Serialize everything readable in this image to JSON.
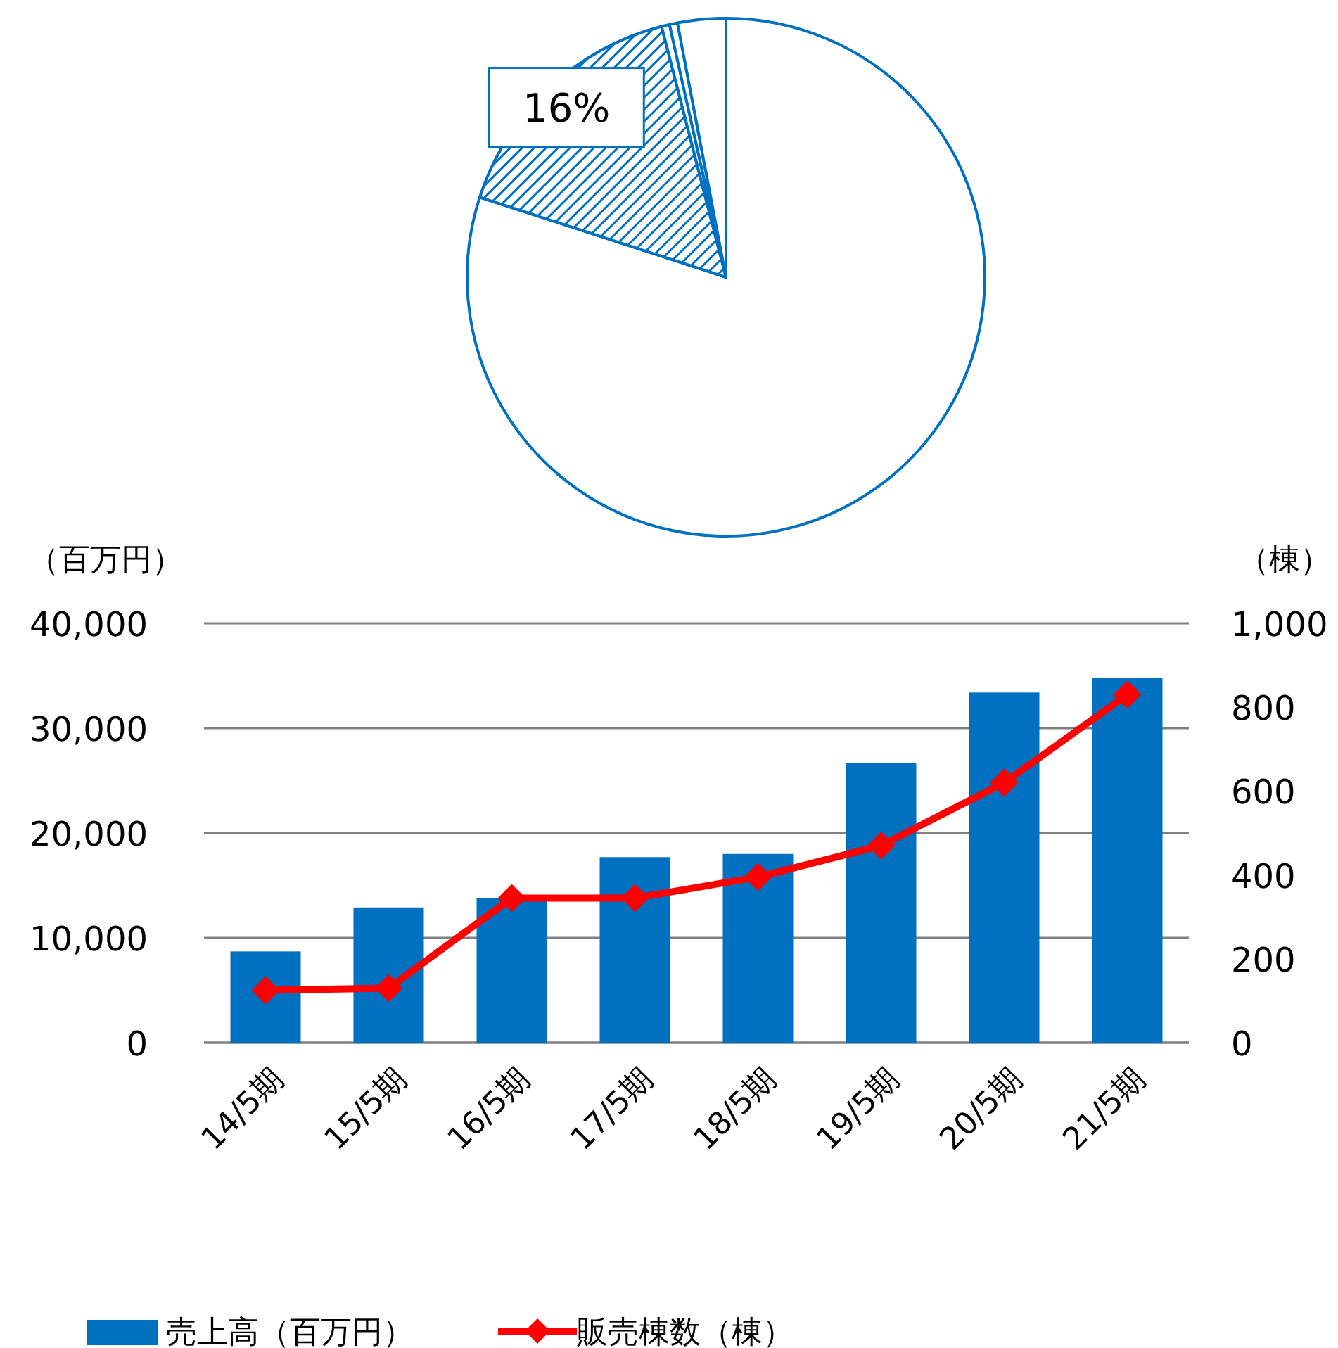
{
  "chart_data": [
    {
      "type": "pie",
      "categories": [
        null,
        null,
        null,
        null,
        null
      ],
      "values": [
        80,
        16,
        0.5,
        0.5,
        3
      ],
      "colors": [
        "#ffffff",
        "#0070c0",
        "#ffffff",
        "#ffffff",
        "#ffffff"
      ],
      "value_labels": [
        null,
        "16%",
        null,
        null,
        null
      ]
    },
    {
      "type": "bar",
      "categories": [
        "14/5期",
        "15/5期",
        "16/5期",
        "17/5期",
        "18/5期",
        "19/5期",
        "20/5期",
        "21/5期"
      ],
      "series": [
        {
          "name": "売上高（百万円）",
          "color": "#0070c0",
          "values": [
            8700,
            12900,
            13800,
            17700,
            18000,
            26700,
            33400,
            34800
          ]
        },
        {
          "name": "販売棟数（棟）",
          "type": "line",
          "axis": "y2",
          "color": "#ff0000",
          "values": [
            125,
            130,
            345,
            345,
            395,
            470,
            620,
            830
          ]
        }
      ],
      "ylabel": "（百万円）",
      "y2label": "（棟）",
      "ylim": [
        0,
        40000
      ],
      "yticks": [
        0,
        {
          "value": 10000,
          "label": "10,000"
        },
        {
          "value": 20000,
          "label": "20,000"
        },
        {
          "value": 30000,
          "label": "30,000"
        },
        {
          "value": 40000,
          "label": "40,000"
        }
      ],
      "y2lim": [
        0,
        1000
      ],
      "y2ticks": [
        0,
        200,
        400,
        600,
        800,
        {
          "value": 1000,
          "label": "1,000"
        }
      ],
      "grid": "y",
      "legend": "bottom",
      "marker": "diamond",
      "line_style": "solid"
    }
  ]
}
